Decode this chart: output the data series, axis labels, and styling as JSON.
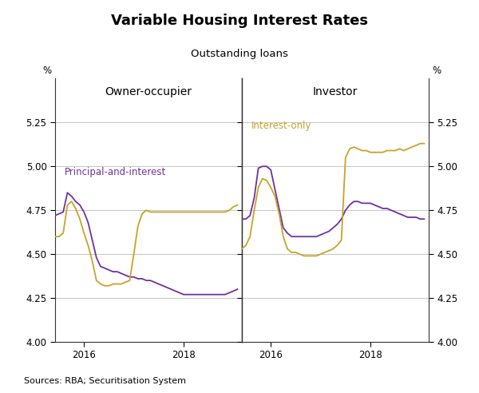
{
  "title": "Variable Housing Interest Rates",
  "subtitle": "Outstanding loans",
  "source": "Sources: RBA; Securitisation System",
  "left_panel_label": "Owner-occupier",
  "right_panel_label": "Investor",
  "label_pai": "Principal-and-interest",
  "label_io": "Interest-only",
  "color_pai": "#7030A0",
  "color_io": "#C9A227",
  "ylim": [
    4.0,
    5.5
  ],
  "yticks": [
    4.0,
    4.25,
    4.5,
    4.75,
    5.0,
    5.25
  ],
  "yticklabels": [
    "4.00",
    "4.25",
    "4.50",
    "4.75",
    "5.00",
    "5.25"
  ],
  "background": "#ffffff",
  "gridcolor": "#bbbbbb",
  "left_dates": [
    2015.42,
    2015.5,
    2015.583,
    2015.667,
    2015.75,
    2015.833,
    2015.917,
    2016.0,
    2016.083,
    2016.167,
    2016.25,
    2016.333,
    2016.417,
    2016.5,
    2016.583,
    2016.667,
    2016.75,
    2016.833,
    2016.917,
    2017.0,
    2017.083,
    2017.167,
    2017.25,
    2017.333,
    2017.417,
    2017.5,
    2017.583,
    2017.667,
    2017.75,
    2017.833,
    2017.917,
    2018.0,
    2018.083,
    2018.167,
    2018.25,
    2018.333,
    2018.417,
    2018.5,
    2018.583,
    2018.667,
    2018.75,
    2018.833,
    2018.917,
    2019.0,
    2019.08
  ],
  "left_pai": [
    4.72,
    4.73,
    4.74,
    4.85,
    4.83,
    4.8,
    4.78,
    4.74,
    4.68,
    4.58,
    4.48,
    4.43,
    4.42,
    4.41,
    4.4,
    4.4,
    4.39,
    4.38,
    4.37,
    4.37,
    4.36,
    4.36,
    4.35,
    4.35,
    4.34,
    4.33,
    4.32,
    4.31,
    4.3,
    4.29,
    4.28,
    4.27,
    4.27,
    4.27,
    4.27,
    4.27,
    4.27,
    4.27,
    4.27,
    4.27,
    4.27,
    4.27,
    4.28,
    4.29,
    4.3
  ],
  "left_io": [
    4.6,
    4.6,
    4.62,
    4.78,
    4.8,
    4.76,
    4.7,
    4.62,
    4.55,
    4.46,
    4.35,
    4.33,
    4.32,
    4.32,
    4.33,
    4.33,
    4.33,
    4.34,
    4.35,
    4.5,
    4.66,
    4.73,
    4.75,
    4.74,
    4.74,
    4.74,
    4.74,
    4.74,
    4.74,
    4.74,
    4.74,
    4.74,
    4.74,
    4.74,
    4.74,
    4.74,
    4.74,
    4.74,
    4.74,
    4.74,
    4.74,
    4.74,
    4.75,
    4.77,
    4.78
  ],
  "right_dates": [
    2015.42,
    2015.5,
    2015.583,
    2015.667,
    2015.75,
    2015.833,
    2015.917,
    2016.0,
    2016.083,
    2016.167,
    2016.25,
    2016.333,
    2016.417,
    2016.5,
    2016.583,
    2016.667,
    2016.75,
    2016.833,
    2016.917,
    2017.0,
    2017.083,
    2017.167,
    2017.25,
    2017.333,
    2017.417,
    2017.5,
    2017.583,
    2017.667,
    2017.75,
    2017.833,
    2017.917,
    2018.0,
    2018.083,
    2018.167,
    2018.25,
    2018.333,
    2018.417,
    2018.5,
    2018.583,
    2018.667,
    2018.75,
    2018.833,
    2018.917,
    2019.0,
    2019.08
  ],
  "right_pai": [
    4.7,
    4.7,
    4.72,
    4.82,
    4.99,
    5.0,
    5.0,
    4.98,
    4.87,
    4.76,
    4.65,
    4.62,
    4.6,
    4.6,
    4.6,
    4.6,
    4.6,
    4.6,
    4.6,
    4.61,
    4.62,
    4.63,
    4.65,
    4.67,
    4.7,
    4.75,
    4.78,
    4.8,
    4.8,
    4.79,
    4.79,
    4.79,
    4.78,
    4.77,
    4.76,
    4.76,
    4.75,
    4.74,
    4.73,
    4.72,
    4.71,
    4.71,
    4.71,
    4.7,
    4.7
  ],
  "right_io": [
    4.53,
    4.55,
    4.6,
    4.75,
    4.88,
    4.93,
    4.92,
    4.88,
    4.83,
    4.73,
    4.6,
    4.53,
    4.51,
    4.51,
    4.5,
    4.49,
    4.49,
    4.49,
    4.49,
    4.5,
    4.51,
    4.52,
    4.53,
    4.55,
    4.58,
    5.05,
    5.1,
    5.11,
    5.1,
    5.09,
    5.09,
    5.08,
    5.08,
    5.08,
    5.08,
    5.09,
    5.09,
    5.09,
    5.1,
    5.09,
    5.1,
    5.11,
    5.12,
    5.13,
    5.13
  ],
  "xlim": [
    2015.42,
    2019.17
  ],
  "xticks": [
    2016,
    2018
  ],
  "xticklabels": [
    "2016",
    "2018"
  ]
}
